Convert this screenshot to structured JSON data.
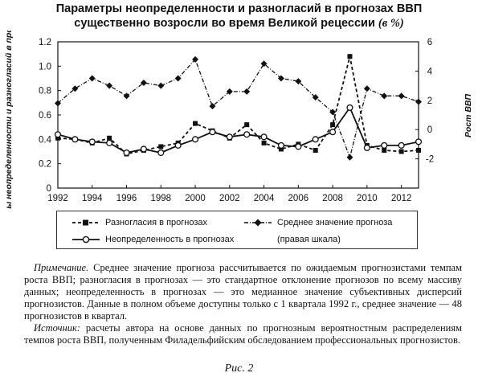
{
  "title": {
    "line1": "Параметры неопределенности и разногласий в прогнозах ВВП",
    "line2": "существенно возросли во время Великой рецессии",
    "unit": "(в %)"
  },
  "chart_data": {
    "type": "line",
    "ylabel_left": "Параметры неопределенности и разногласий в прогнозах ВВП",
    "ylabel_right": "Рост ВВП",
    "left_ticks": [
      "0",
      "0.2",
      "0.4",
      "0.6",
      "0.8",
      "1.0",
      "1.2"
    ],
    "right_ticks": [
      "-2",
      "0",
      "2",
      "4",
      "6"
    ],
    "x_ticks": [
      "1992",
      "1994",
      "1996",
      "1998",
      "2000",
      "2002",
      "2004",
      "2006",
      "2008",
      "2010",
      "2012"
    ],
    "xlim": [
      1992,
      2013
    ],
    "ylim_left": [
      0,
      1.2
    ],
    "ylim_right": [
      -4,
      6
    ],
    "series": [
      {
        "name": "Разногласия в прогнозах",
        "axis": "left",
        "style": "dashed-square",
        "x": [
          1992,
          1993,
          1994,
          1995,
          1996,
          1997,
          1998,
          1999,
          2000,
          2001,
          2002,
          2003,
          2004,
          2005,
          2006,
          2007,
          2008,
          2009,
          2010,
          2011,
          2012,
          2013
        ],
        "values": [
          0.41,
          0.4,
          0.37,
          0.41,
          0.28,
          0.31,
          0.34,
          0.37,
          0.53,
          0.47,
          0.41,
          0.52,
          0.37,
          0.32,
          0.36,
          0.31,
          0.52,
          1.08,
          0.35,
          0.31,
          0.3,
          0.31
        ]
      },
      {
        "name": "Неопределенность в прогнозах",
        "axis": "left",
        "style": "solid-circle",
        "x": [
          1992,
          1993,
          1994,
          1995,
          1996,
          1997,
          1998,
          1999,
          2000,
          2001,
          2002,
          2003,
          2004,
          2005,
          2006,
          2007,
          2008,
          2009,
          2010,
          2011,
          2012,
          2013
        ],
        "values": [
          0.44,
          0.4,
          0.38,
          0.37,
          0.29,
          0.32,
          0.29,
          0.35,
          0.4,
          0.46,
          0.42,
          0.44,
          0.42,
          0.35,
          0.34,
          0.4,
          0.46,
          0.66,
          0.33,
          0.35,
          0.35,
          0.38
        ]
      },
      {
        "name": "Среднее значение прогноза",
        "axis": "right",
        "style": "dashed-diamond",
        "x": [
          1992,
          1993,
          1994,
          1995,
          1996,
          1997,
          1998,
          1999,
          2000,
          2001,
          2002,
          2003,
          2004,
          2005,
          2006,
          2007,
          2008,
          2009,
          2010,
          2011,
          2012,
          2013
        ],
        "values": [
          1.8,
          2.8,
          3.5,
          3.0,
          2.3,
          3.2,
          3.0,
          3.5,
          4.8,
          1.6,
          2.6,
          2.6,
          4.5,
          3.5,
          3.3,
          2.2,
          1.2,
          -1.9,
          2.8,
          2.3,
          2.3,
          1.9
        ]
      }
    ],
    "legend": [
      {
        "label": "Разногласия в прогнозах",
        "style": "dashed-square"
      },
      {
        "label": "Среднее значение прогноза",
        "style": "dashed-diamond"
      },
      {
        "label": "Неопределенность в прогнозах",
        "style": "solid-circle"
      },
      {
        "label": "(правая шкала)",
        "style": "none"
      }
    ],
    "legend_placement": "bottom",
    "grid": false
  },
  "note": {
    "label": "Примечание.",
    "text": "Среднее значение прогноза рассчитывается по ожидаемым прогнозистами темпам роста ВВП; разногласия в прогнозах — это стандартное отклонение прогнозов по всему массиву данных; неопределенность в прогнозах — это медианное значение субъективных дисперсий прогнозистов. Данные в полном объеме доступны только с 1 квартала 1992 г., среднее значение — 48 прогнозистов в квартал."
  },
  "source": {
    "label": "Источник:",
    "text": "расчеты автора на основе данных по прогнозным вероятностным распределениям темпов роста ВВП, полученным Филадельфийским обследованием профессиональных прогнозистов."
  },
  "figure_caption": "Рис. 2"
}
